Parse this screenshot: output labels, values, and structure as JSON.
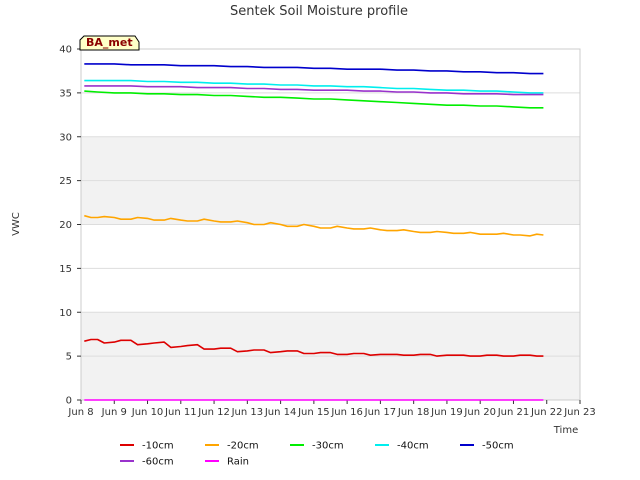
{
  "chart_data": {
    "type": "line",
    "title": "Sentek Soil Moisture profile",
    "xlabel": "Time",
    "ylabel": "VWC",
    "site_label": "BA_met",
    "xlim": [
      8,
      23
    ],
    "ylim": [
      0,
      40
    ],
    "x_ticks": [
      8,
      9,
      10,
      11,
      12,
      13,
      14,
      15,
      16,
      17,
      18,
      19,
      20,
      21,
      22,
      23
    ],
    "x_tick_labels": [
      "Jun 8",
      "Jun 9",
      "Jun 10",
      "Jun 11",
      "Jun 12",
      "Jun 13",
      "Jun 14",
      "Jun 15",
      "Jun 16",
      "Jun 17",
      "Jun 18",
      "Jun 19",
      "Jun 20",
      "Jun 21",
      "Jun 22",
      "Jun 23"
    ],
    "y_ticks": [
      0,
      5,
      10,
      15,
      20,
      25,
      30,
      35,
      40
    ],
    "y_tick_labels": [
      "0",
      "5",
      "10",
      "15",
      "20",
      "25",
      "30",
      "35",
      "40"
    ],
    "grid": true,
    "legend_position": "bottom",
    "series": [
      {
        "name": "-10cm",
        "color": "#dd0000",
        "x": [
          8.1,
          8.3,
          8.5,
          8.7,
          9.0,
          9.2,
          9.5,
          9.7,
          10.0,
          10.2,
          10.5,
          10.7,
          11.0,
          11.2,
          11.5,
          11.7,
          12.0,
          12.2,
          12.5,
          12.7,
          13.0,
          13.2,
          13.5,
          13.7,
          14.0,
          14.2,
          14.5,
          14.7,
          15.0,
          15.2,
          15.5,
          15.7,
          16.0,
          16.2,
          16.5,
          16.7,
          17.0,
          17.2,
          17.5,
          17.7,
          18.0,
          18.2,
          18.5,
          18.7,
          19.0,
          19.2,
          19.5,
          19.7,
          20.0,
          20.2,
          20.5,
          20.7,
          21.0,
          21.2,
          21.5,
          21.7,
          21.9
        ],
        "y": [
          6.7,
          6.9,
          6.9,
          6.5,
          6.6,
          6.8,
          6.8,
          6.3,
          6.4,
          6.5,
          6.6,
          6.0,
          6.1,
          6.2,
          6.3,
          5.8,
          5.8,
          5.9,
          5.9,
          5.5,
          5.6,
          5.7,
          5.7,
          5.4,
          5.5,
          5.6,
          5.6,
          5.3,
          5.3,
          5.4,
          5.4,
          5.2,
          5.2,
          5.3,
          5.3,
          5.1,
          5.2,
          5.2,
          5.2,
          5.1,
          5.1,
          5.2,
          5.2,
          5.0,
          5.1,
          5.1,
          5.1,
          5.0,
          5.0,
          5.1,
          5.1,
          5.0,
          5.0,
          5.1,
          5.1,
          5.0,
          5.0
        ]
      },
      {
        "name": "-20cm",
        "color": "#ffa500",
        "x": [
          8.1,
          8.3,
          8.5,
          8.7,
          9.0,
          9.2,
          9.5,
          9.7,
          10.0,
          10.2,
          10.5,
          10.7,
          11.0,
          11.2,
          11.5,
          11.7,
          12.0,
          12.2,
          12.5,
          12.7,
          13.0,
          13.2,
          13.5,
          13.7,
          14.0,
          14.2,
          14.5,
          14.7,
          15.0,
          15.2,
          15.5,
          15.7,
          16.0,
          16.2,
          16.5,
          16.7,
          17.0,
          17.2,
          17.5,
          17.7,
          18.0,
          18.2,
          18.5,
          18.7,
          19.0,
          19.2,
          19.5,
          19.7,
          20.0,
          20.2,
          20.5,
          20.7,
          21.0,
          21.2,
          21.5,
          21.7,
          21.9
        ],
        "y": [
          21.0,
          20.8,
          20.8,
          20.9,
          20.8,
          20.6,
          20.6,
          20.8,
          20.7,
          20.5,
          20.5,
          20.7,
          20.5,
          20.4,
          20.4,
          20.6,
          20.4,
          20.3,
          20.3,
          20.4,
          20.2,
          20.0,
          20.0,
          20.2,
          20.0,
          19.8,
          19.8,
          20.0,
          19.8,
          19.6,
          19.6,
          19.8,
          19.6,
          19.5,
          19.5,
          19.6,
          19.4,
          19.3,
          19.3,
          19.4,
          19.2,
          19.1,
          19.1,
          19.2,
          19.1,
          19.0,
          19.0,
          19.1,
          18.9,
          18.9,
          18.9,
          19.0,
          18.8,
          18.8,
          18.7,
          18.9,
          18.8
        ]
      },
      {
        "name": "-30cm",
        "color": "#00ee00",
        "x": [
          8.1,
          8.5,
          9.0,
          9.5,
          10.0,
          10.5,
          11.0,
          11.5,
          12.0,
          12.5,
          13.0,
          13.5,
          14.0,
          14.5,
          15.0,
          15.5,
          16.0,
          16.5,
          17.0,
          17.5,
          18.0,
          18.5,
          19.0,
          19.5,
          20.0,
          20.5,
          21.0,
          21.5,
          21.9
        ],
        "y": [
          35.2,
          35.1,
          35.0,
          35.0,
          34.9,
          34.9,
          34.8,
          34.8,
          34.7,
          34.7,
          34.6,
          34.5,
          34.5,
          34.4,
          34.3,
          34.3,
          34.2,
          34.1,
          34.0,
          33.9,
          33.8,
          33.7,
          33.6,
          33.6,
          33.5,
          33.5,
          33.4,
          33.3,
          33.3
        ]
      },
      {
        "name": "-40cm",
        "color": "#00eeee",
        "x": [
          8.1,
          8.5,
          9.0,
          9.5,
          10.0,
          10.5,
          11.0,
          11.5,
          12.0,
          12.5,
          13.0,
          13.5,
          14.0,
          14.5,
          15.0,
          15.5,
          16.0,
          16.5,
          17.0,
          17.5,
          18.0,
          18.5,
          19.0,
          19.5,
          20.0,
          20.5,
          21.0,
          21.5,
          21.9
        ],
        "y": [
          36.4,
          36.4,
          36.4,
          36.4,
          36.3,
          36.3,
          36.2,
          36.2,
          36.1,
          36.1,
          36.0,
          36.0,
          35.9,
          35.9,
          35.8,
          35.8,
          35.7,
          35.7,
          35.6,
          35.5,
          35.5,
          35.4,
          35.3,
          35.3,
          35.2,
          35.2,
          35.1,
          35.0,
          35.0
        ]
      },
      {
        "name": "-50cm",
        "color": "#0000cc",
        "x": [
          8.1,
          8.5,
          9.0,
          9.5,
          10.0,
          10.5,
          11.0,
          11.5,
          12.0,
          12.5,
          13.0,
          13.5,
          14.0,
          14.5,
          15.0,
          15.5,
          16.0,
          16.5,
          17.0,
          17.5,
          18.0,
          18.5,
          19.0,
          19.5,
          20.0,
          20.5,
          21.0,
          21.5,
          21.9
        ],
        "y": [
          38.3,
          38.3,
          38.3,
          38.2,
          38.2,
          38.2,
          38.1,
          38.1,
          38.1,
          38.0,
          38.0,
          37.9,
          37.9,
          37.9,
          37.8,
          37.8,
          37.7,
          37.7,
          37.7,
          37.6,
          37.6,
          37.5,
          37.5,
          37.4,
          37.4,
          37.3,
          37.3,
          37.2,
          37.2
        ]
      },
      {
        "name": "-60cm",
        "color": "#9932cc",
        "x": [
          8.1,
          8.5,
          9.0,
          9.5,
          10.0,
          10.5,
          11.0,
          11.5,
          12.0,
          12.5,
          13.0,
          13.5,
          14.0,
          14.5,
          15.0,
          15.5,
          16.0,
          16.5,
          17.0,
          17.5,
          18.0,
          18.5,
          19.0,
          19.5,
          20.0,
          20.5,
          21.0,
          21.5,
          21.9
        ],
        "y": [
          35.8,
          35.8,
          35.8,
          35.8,
          35.7,
          35.7,
          35.7,
          35.6,
          35.6,
          35.6,
          35.5,
          35.5,
          35.4,
          35.4,
          35.3,
          35.3,
          35.3,
          35.2,
          35.2,
          35.1,
          35.1,
          35.0,
          35.0,
          34.9,
          34.9,
          34.9,
          34.8,
          34.8,
          34.8
        ]
      },
      {
        "name": "Rain",
        "color": "#ff00ff",
        "x": [
          8.1,
          21.9
        ],
        "y": [
          0.0,
          0.0
        ]
      }
    ]
  }
}
